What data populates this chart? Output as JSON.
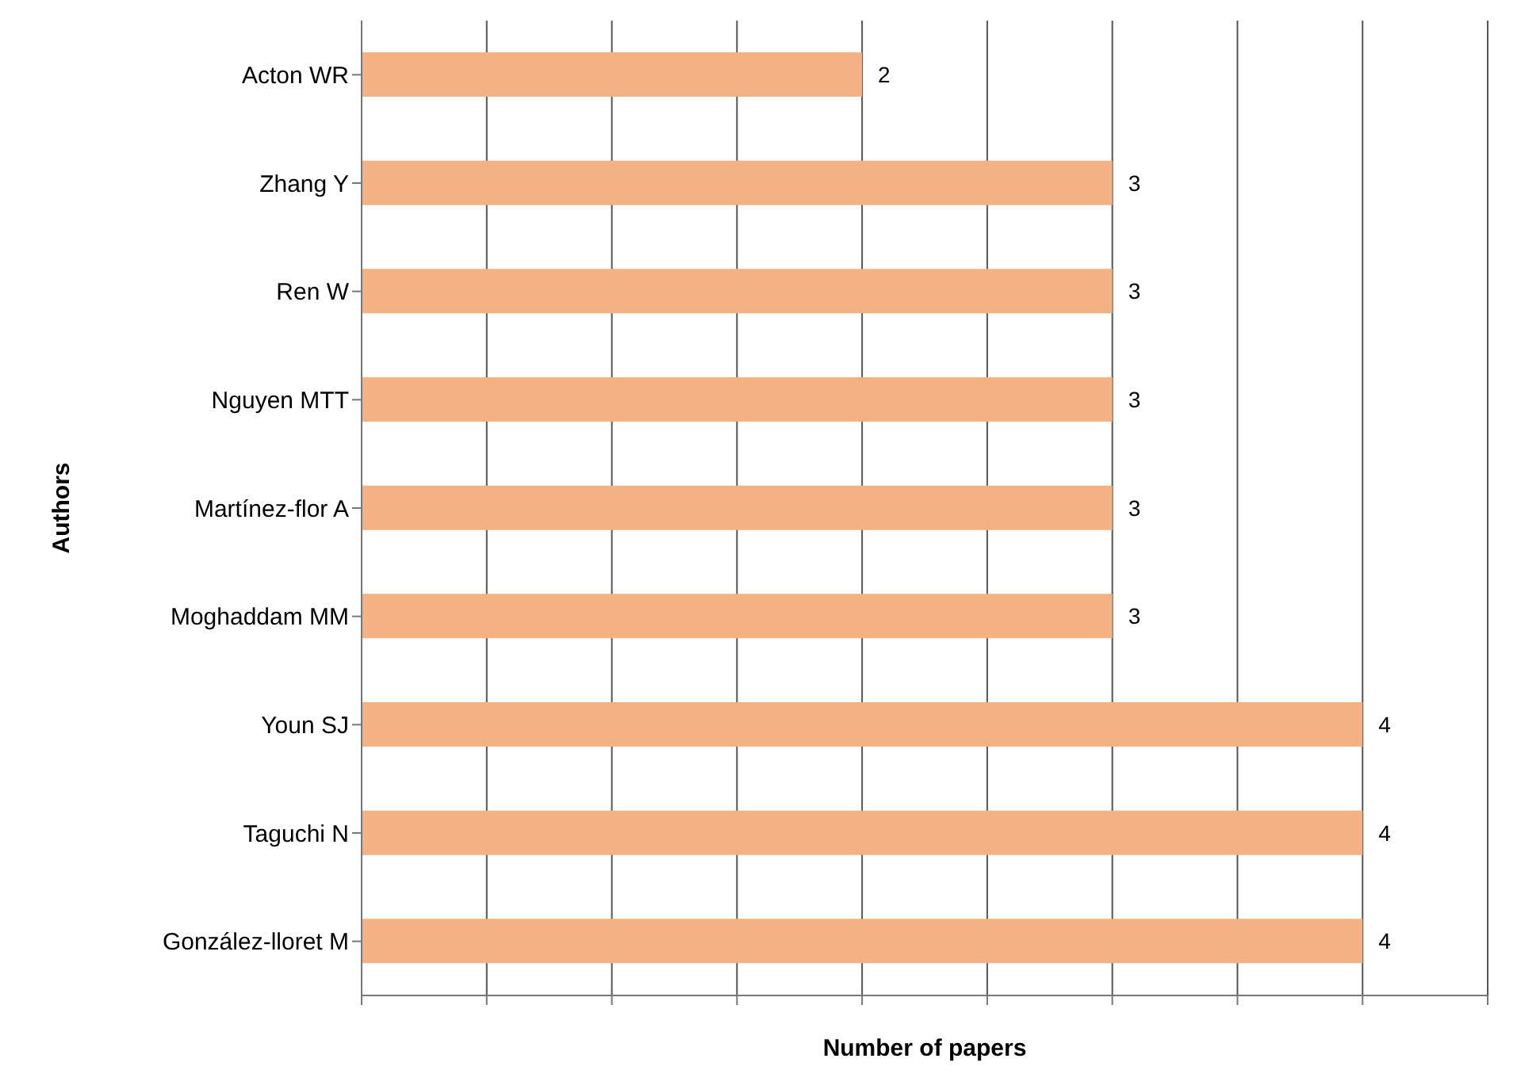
{
  "chart_data": {
    "type": "bar",
    "orientation": "horizontal",
    "xlabel": "Number of papers",
    "ylabel": "Authors",
    "categories": [
      "Acton WR",
      "Zhang Y",
      "Ren W",
      "Nguyen MTT",
      "Martínez-flor A",
      "Moghaddam MM",
      "Youn SJ",
      "Taguchi N",
      "González-lloret M"
    ],
    "values": [
      2,
      3,
      3,
      3,
      3,
      3,
      4,
      4,
      4
    ],
    "color": "#f4b183",
    "data_labels": true,
    "xlim": [
      0,
      4.5
    ],
    "xticks": [
      {
        "value": 0,
        "label": null
      },
      {
        "value": 0.5,
        "label": null
      },
      {
        "value": 1,
        "label": null
      },
      {
        "value": 1.5,
        "label": null
      },
      {
        "value": 2,
        "label": null
      },
      {
        "value": 2.5,
        "label": null
      },
      {
        "value": 3,
        "label": null
      },
      {
        "value": 3.5,
        "label": null
      },
      {
        "value": 4,
        "label": null
      },
      {
        "value": 4.5,
        "label": null
      }
    ],
    "tick_labels": "y",
    "grid": "x"
  }
}
